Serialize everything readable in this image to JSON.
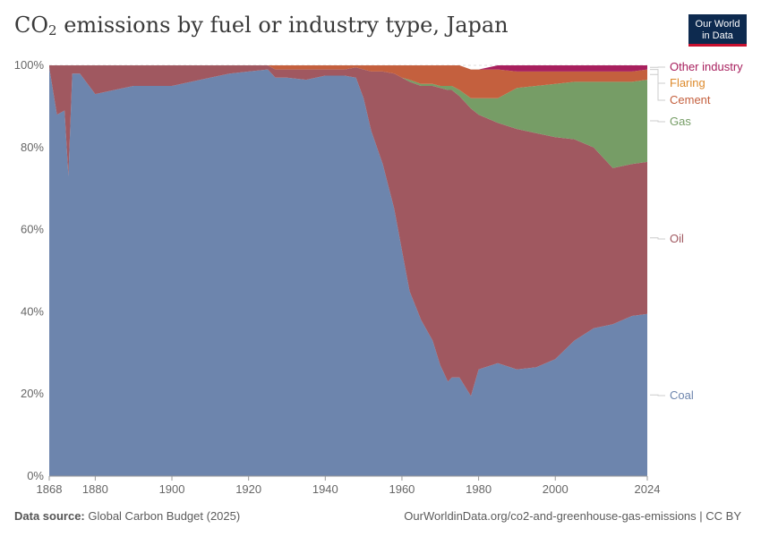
{
  "header": {
    "title_main": "CO",
    "title_sub": "2",
    "title_rest": " emissions by fuel or industry type, Japan",
    "logo_line1": "Our World",
    "logo_line2": "in Data"
  },
  "footer": {
    "source_label": "Data source:",
    "source_text": " Global Carbon Budget (2025)",
    "url_text": "OurWorldinData.org/co2-and-greenhouse-gas-emissions | CC BY"
  },
  "chart_data": {
    "type": "area",
    "stacked": "percent",
    "title": "CO₂ emissions by fuel or industry type, Japan",
    "xlabel": "",
    "ylabel": "",
    "xlim": [
      1868,
      2024
    ],
    "ylim": [
      0,
      100
    ],
    "x_ticks": [
      "1868",
      "1880",
      "1900",
      "1920",
      "1940",
      "1960",
      "1980",
      "2000",
      "2024"
    ],
    "y_ticks": [
      "0%",
      "20%",
      "40%",
      "60%",
      "80%",
      "100%"
    ],
    "legend_position": "right",
    "x": [
      1868,
      1870,
      1872,
      1873,
      1874,
      1876,
      1880,
      1885,
      1890,
      1895,
      1900,
      1905,
      1910,
      1915,
      1920,
      1925,
      1927,
      1930,
      1935,
      1940,
      1945,
      1948,
      1950,
      1952,
      1955,
      1958,
      1960,
      1962,
      1965,
      1968,
      1970,
      1972,
      1973,
      1975,
      1978,
      1980,
      1985,
      1990,
      1995,
      2000,
      2005,
      2010,
      2015,
      2020,
      2024
    ],
    "series": [
      {
        "name": "Coal",
        "color": "#6d85ad",
        "values": [
          99.5,
          88.0,
          89.0,
          73.0,
          98.0,
          98.0,
          93.0,
          94.0,
          95.0,
          95.0,
          95.0,
          96.0,
          97.0,
          98.0,
          98.5,
          99.0,
          97.0,
          97.0,
          96.5,
          97.5,
          97.5,
          97.0,
          92.0,
          84.0,
          76.0,
          65.0,
          55.0,
          45.0,
          38.0,
          33.0,
          27.0,
          23.0,
          24.0,
          24.0,
          19.5,
          26.0,
          27.5,
          26.0,
          26.5,
          28.5,
          33.0,
          36.0,
          37.0,
          39.0,
          39.5
        ]
      },
      {
        "name": "Oil",
        "color": "#a05860",
        "values": [
          0.5,
          12.0,
          11.0,
          27.0,
          2.0,
          2.0,
          7.0,
          6.0,
          5.0,
          5.0,
          5.0,
          4.0,
          3.0,
          2.0,
          1.5,
          1.0,
          2.0,
          2.0,
          2.5,
          1.5,
          1.5,
          2.5,
          7.0,
          14.5,
          22.5,
          33.0,
          42.0,
          51.0,
          57.0,
          62.0,
          67.5,
          71.0,
          70.0,
          68.5,
          70.0,
          62.0,
          58.5,
          58.5,
          57.0,
          54.0,
          49.0,
          44.0,
          38.0,
          37.0,
          37.0
        ]
      },
      {
        "name": "Gas",
        "color": "#769d66",
        "values": [
          0,
          0,
          0,
          0,
          0,
          0,
          0,
          0,
          0,
          0,
          0,
          0,
          0,
          0,
          0,
          0,
          0,
          0,
          0,
          0,
          0,
          0,
          0,
          0,
          0,
          0,
          0,
          0.5,
          0.5,
          0.5,
          0.5,
          1.0,
          1.0,
          1.5,
          2.5,
          4.0,
          6.0,
          10.0,
          11.5,
          13.0,
          14.0,
          16.0,
          21.0,
          20.0,
          20.0
        ]
      },
      {
        "name": "Cement",
        "color": "#c4603e",
        "values": [
          0,
          0,
          0,
          0,
          0,
          0,
          0,
          0,
          0,
          0,
          0,
          0,
          0,
          0,
          0,
          0,
          1.0,
          1.0,
          1.0,
          1.0,
          1.0,
          0.5,
          1.0,
          1.5,
          1.5,
          2.0,
          3.0,
          3.5,
          4.5,
          4.5,
          5.0,
          5.0,
          5.0,
          6.0,
          7.0,
          7.0,
          7.0,
          4.0,
          3.5,
          3.0,
          2.5,
          2.5,
          2.5,
          2.5,
          2.5
        ]
      },
      {
        "name": "Flaring",
        "color": "#dd8a2c",
        "values": [
          0,
          0,
          0,
          0,
          0,
          0,
          0,
          0,
          0,
          0,
          0,
          0,
          0,
          0,
          0,
          0,
          0,
          0,
          0,
          0,
          0,
          0,
          0,
          0,
          0,
          0,
          0,
          0,
          0,
          0,
          0,
          0,
          0,
          0,
          0,
          0,
          0,
          0,
          0,
          0,
          0,
          0,
          0,
          0,
          0
        ]
      },
      {
        "name": "Other industry",
        "color": "#a8205e",
        "values": [
          0,
          0,
          0,
          0,
          0,
          0,
          0,
          0,
          0,
          0,
          0,
          0,
          0,
          0,
          0,
          0,
          0,
          0,
          0,
          0,
          0,
          0,
          0,
          0,
          0,
          0,
          0,
          0,
          0,
          0,
          0,
          0,
          0,
          0,
          0,
          0,
          1.0,
          1.5,
          1.5,
          1.5,
          1.5,
          1.5,
          1.5,
          1.5,
          1.0
        ]
      }
    ],
    "legend": [
      {
        "name": "Other industry",
        "color": "#a8205e"
      },
      {
        "name": "Flaring",
        "color": "#dd8a2c"
      },
      {
        "name": "Cement",
        "color": "#c4603e"
      },
      {
        "name": "Gas",
        "color": "#769d66"
      },
      {
        "name": "Oil",
        "color": "#a05860"
      },
      {
        "name": "Coal",
        "color": "#6d85ad"
      }
    ]
  }
}
